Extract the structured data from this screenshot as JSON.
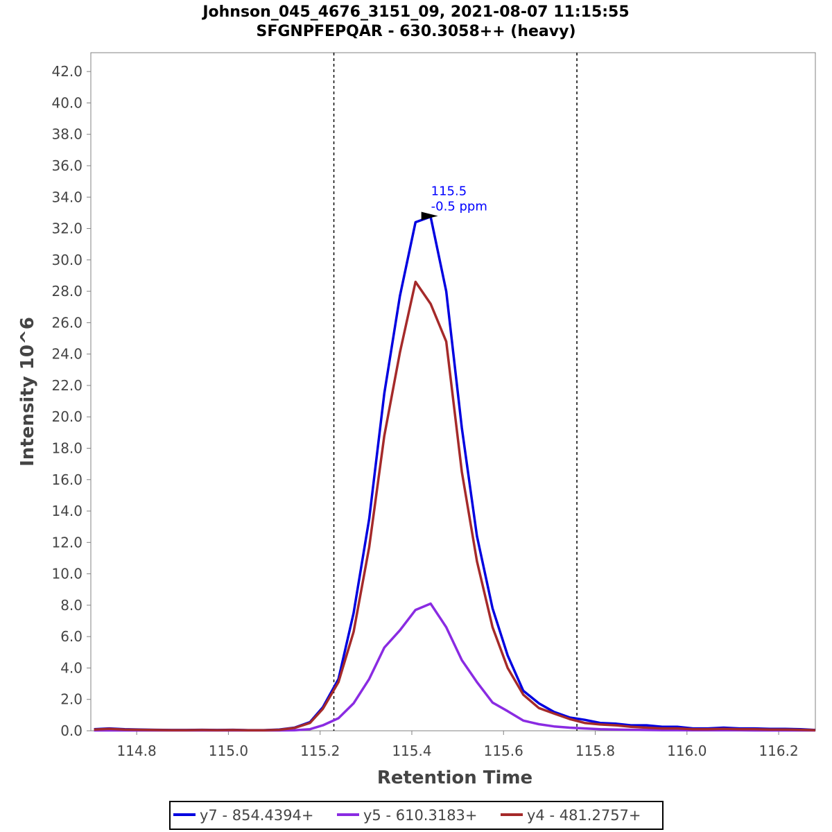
{
  "chart_data": {
    "type": "line",
    "title": "Johnson_045_4676_3151_09, 2021-08-07 11:15:55",
    "subtitle": "SFGNPFEPQAR - 630.3058++ (heavy)",
    "xlabel": "Retention Time",
    "ylabel": "Intensity 10^6",
    "xlim": [
      114.7,
      116.28
    ],
    "ylim": [
      0,
      43.2
    ],
    "x_ticks": [
      114.8,
      115.0,
      115.2,
      115.4,
      115.6,
      115.8,
      116.0,
      116.2
    ],
    "y_ticks": [
      0,
      2,
      4,
      6,
      8,
      10,
      12,
      14,
      16,
      18,
      20,
      22,
      24,
      26,
      28,
      30,
      32,
      34,
      36,
      38,
      40,
      42
    ],
    "grid": false,
    "boundaries": [
      115.23,
      115.76
    ],
    "annotation": {
      "x": 115.46,
      "y": 32.8,
      "rt_label": "115.5",
      "ppm_label": "-0.5 ppm",
      "color": "#0000ff"
    },
    "legend_position": "bottom",
    "series": [
      {
        "name": "y7 - 854.4394+",
        "color": "#0000e0",
        "x": [
          114.707,
          114.74,
          114.774,
          114.808,
          114.841,
          114.875,
          114.909,
          114.942,
          114.976,
          115.01,
          115.043,
          115.077,
          115.111,
          115.144,
          115.178,
          115.206,
          115.24,
          115.273,
          115.307,
          115.34,
          115.374,
          115.408,
          115.441,
          115.475,
          115.509,
          115.542,
          115.576,
          115.609,
          115.643,
          115.677,
          115.71,
          115.744,
          115.777,
          115.811,
          115.845,
          115.878,
          115.912,
          115.946,
          115.979,
          116.013,
          116.046,
          116.08,
          116.114,
          116.147,
          116.181,
          116.214,
          116.248,
          116.28
        ],
        "y": [
          0.1,
          0.15,
          0.1,
          0.08,
          0.06,
          0.05,
          0.05,
          0.06,
          0.05,
          0.06,
          0.04,
          0.04,
          0.08,
          0.2,
          0.55,
          1.5,
          3.3,
          7.5,
          13.5,
          21.5,
          27.7,
          32.4,
          32.75,
          28,
          19.3,
          12.4,
          7.8,
          4.8,
          2.55,
          1.75,
          1.2,
          0.85,
          0.7,
          0.5,
          0.45,
          0.35,
          0.35,
          0.25,
          0.25,
          0.15,
          0.15,
          0.2,
          0.15,
          0.15,
          0.12,
          0.12,
          0.1,
          0.05
        ]
      },
      {
        "name": "y5 - 610.3183+",
        "color": "#8a2be2",
        "x": [
          114.707,
          114.74,
          114.774,
          114.808,
          114.841,
          114.875,
          114.909,
          114.942,
          114.976,
          115.01,
          115.043,
          115.077,
          115.111,
          115.144,
          115.178,
          115.206,
          115.24,
          115.273,
          115.307,
          115.34,
          115.374,
          115.408,
          115.441,
          115.475,
          115.509,
          115.542,
          115.576,
          115.609,
          115.643,
          115.677,
          115.71,
          115.744,
          115.777,
          115.811,
          115.845,
          115.878,
          115.912,
          115.946,
          115.979,
          116.013,
          116.046,
          116.08,
          116.114,
          116.147,
          116.181,
          116.214,
          116.248,
          116.28
        ],
        "y": [
          0.02,
          0.02,
          0.02,
          0.02,
          0.02,
          0.02,
          0.02,
          0.02,
          0.02,
          0.02,
          0.02,
          0.02,
          0.02,
          0.03,
          0.1,
          0.35,
          0.8,
          1.75,
          3.3,
          5.3,
          6.4,
          7.7,
          8.1,
          6.6,
          4.5,
          3.1,
          1.8,
          1.25,
          0.65,
          0.42,
          0.28,
          0.2,
          0.15,
          0.1,
          0.08,
          0.06,
          0.05,
          0.04,
          0.04,
          0.03,
          0.03,
          0.03,
          0.03,
          0.02,
          0.02,
          0.02,
          0.02,
          0.02
        ]
      },
      {
        "name": "y4 - 481.2757+",
        "color": "#a52a2a",
        "x": [
          114.707,
          114.74,
          114.774,
          114.808,
          114.841,
          114.875,
          114.909,
          114.942,
          114.976,
          115.01,
          115.043,
          115.077,
          115.111,
          115.144,
          115.178,
          115.206,
          115.24,
          115.273,
          115.307,
          115.34,
          115.374,
          115.408,
          115.441,
          115.475,
          115.509,
          115.542,
          115.576,
          115.609,
          115.643,
          115.677,
          115.71,
          115.744,
          115.777,
          115.811,
          115.845,
          115.878,
          115.912,
          115.946,
          115.979,
          116.013,
          116.046,
          116.08,
          116.114,
          116.147,
          116.181,
          116.214,
          116.248,
          116.28
        ],
        "y": [
          0.08,
          0.12,
          0.08,
          0.06,
          0.05,
          0.04,
          0.04,
          0.05,
          0.04,
          0.05,
          0.03,
          0.03,
          0.06,
          0.18,
          0.5,
          1.4,
          3.1,
          6.3,
          11.7,
          18.8,
          24.1,
          28.6,
          27.2,
          24.8,
          16.5,
          10.8,
          6.6,
          4,
          2.3,
          1.45,
          1.1,
          0.75,
          0.5,
          0.4,
          0.35,
          0.25,
          0.2,
          0.15,
          0.15,
          0.1,
          0.1,
          0.12,
          0.1,
          0.1,
          0.08,
          0.08,
          0.06,
          0.04
        ]
      }
    ]
  }
}
